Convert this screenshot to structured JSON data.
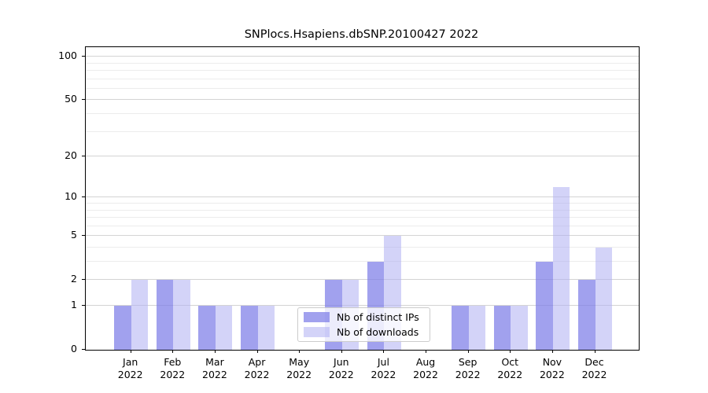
{
  "chart_data": {
    "type": "bar",
    "title": "SNPlocs.Hsapiens.dbSNP.20100427 2022",
    "categories": [
      "Jan",
      "Feb",
      "Mar",
      "Apr",
      "May",
      "Jun",
      "Jul",
      "Aug",
      "Sep",
      "Oct",
      "Nov",
      "Dec"
    ],
    "year_label": "2022",
    "series": [
      {
        "name": "Nb of distinct IPs",
        "color": "rgba(125,125,232,0.72)",
        "values": [
          1,
          2,
          1,
          1,
          0,
          2,
          3,
          0,
          1,
          1,
          3,
          2
        ]
      },
      {
        "name": "Nb of downloads",
        "color": "rgba(175,175,243,0.55)",
        "values": [
          2,
          2,
          1,
          1,
          0,
          2,
          5,
          0,
          1,
          1,
          12,
          4
        ]
      }
    ],
    "scale": "log1p",
    "ylim": [
      0,
      100
    ],
    "y_ticks": [
      100,
      50,
      20,
      10,
      5,
      2,
      1,
      0
    ],
    "y_minor_gridlines": [
      3,
      4,
      6,
      7,
      8,
      9,
      30,
      40,
      60,
      70,
      80,
      90
    ],
    "grid": "on",
    "legend_position": "lower-center",
    "colors": {
      "major_grid": "#d4d4d4",
      "minor_grid": "#ececec",
      "axis": "#000000",
      "legend_border": "#cccccc"
    }
  }
}
